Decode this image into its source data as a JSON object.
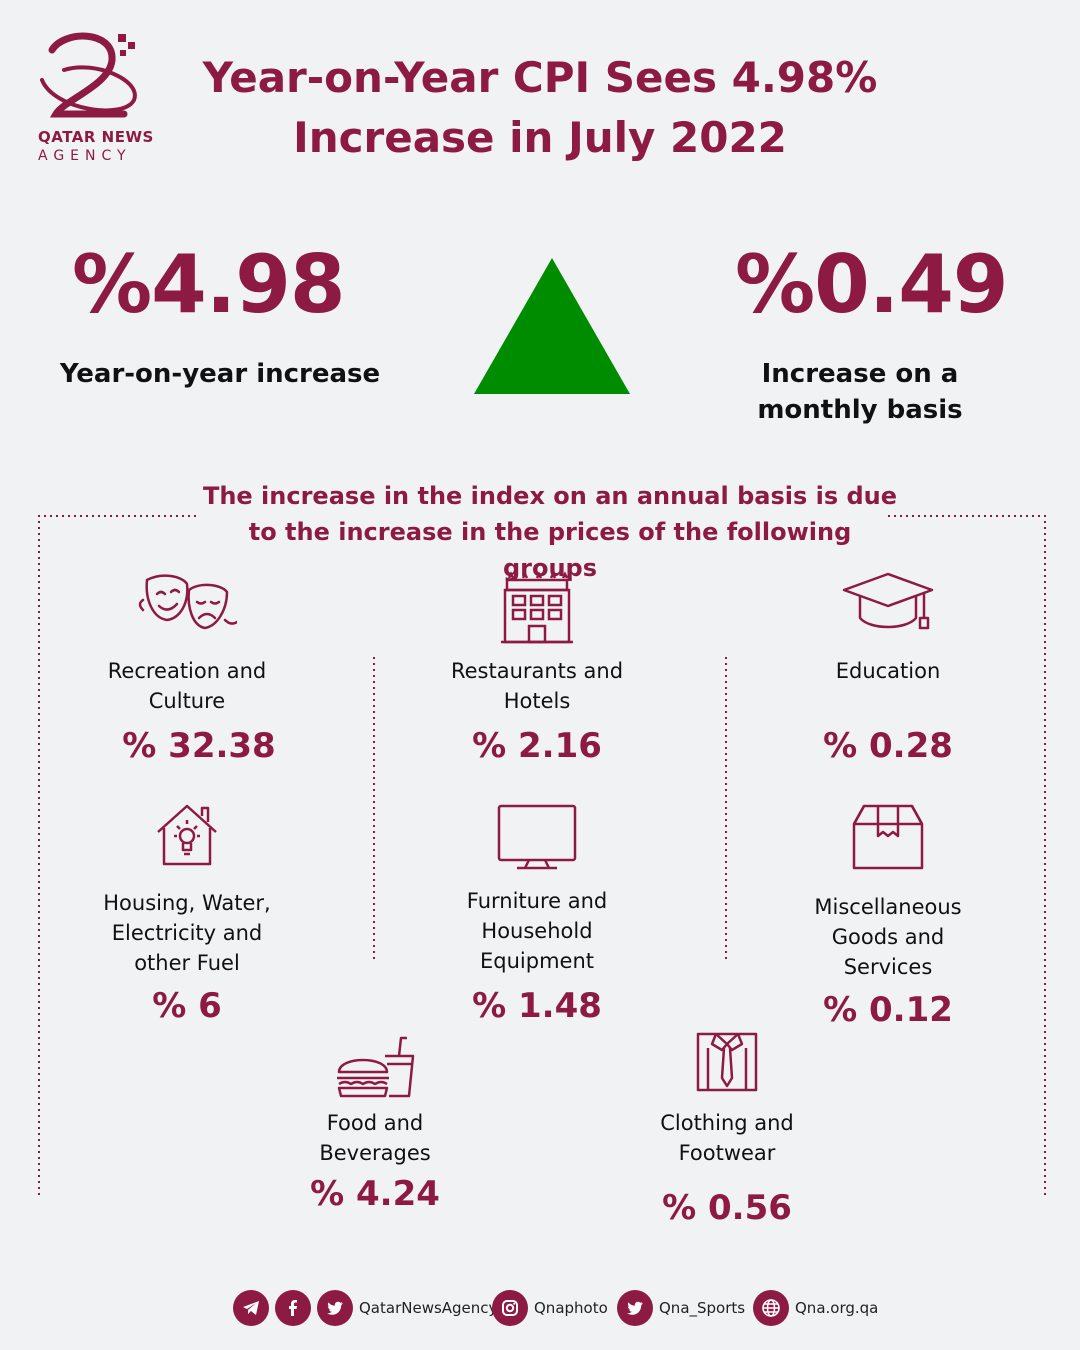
{
  "brand": {
    "logo_name_line1": "QATAR NEWS",
    "logo_name_line2": "AGENCY",
    "color": "#8c1a43"
  },
  "header": {
    "title_line1": "Year-on-Year CPI Sees 4.98%",
    "title_line2": "Increase in July 2022"
  },
  "summary": {
    "yoy_value": "%4.98",
    "yoy_label": "Year-on-year increase",
    "mom_value": "%0.49",
    "mom_label_line1": "Increase on a",
    "mom_label_line2": "monthly basis",
    "trend_icon": "up-triangle-icon",
    "trend_color": "#008c00"
  },
  "section": {
    "title_line1": "The increase in the index on an annual basis is due",
    "title_line2": "to the increase in the prices of the following groups"
  },
  "categories": [
    {
      "icon": "theater-masks-icon",
      "name_lines": [
        "Recreation and",
        "Culture"
      ],
      "percent": "% 32.38"
    },
    {
      "icon": "hotel-icon",
      "name_lines": [
        "Restaurants and",
        "Hotels"
      ],
      "percent": "% 2.16"
    },
    {
      "icon": "graduation-cap-icon",
      "name_lines": [
        "Education"
      ],
      "percent": "% 0.28"
    },
    {
      "icon": "house-bulb-icon",
      "name_lines": [
        "Housing, Water,",
        "Electricity and",
        "other Fuel"
      ],
      "percent": "% 6"
    },
    {
      "icon": "monitor-icon",
      "name_lines": [
        "Furniture and",
        "Household",
        "Equipment"
      ],
      "percent": "% 1.48"
    },
    {
      "icon": "box-icon",
      "name_lines": [
        "Miscellaneous",
        "Goods and",
        "Services"
      ],
      "percent": "% 0.12"
    },
    {
      "icon": "burger-drink-icon",
      "name_lines": [
        "Food and",
        "Beverages"
      ],
      "percent": "% 4.24"
    },
    {
      "icon": "shirt-tie-icon",
      "name_lines": [
        "Clothing and",
        "Footwear"
      ],
      "percent": "% 0.56"
    }
  ],
  "footer": {
    "handle_main": "QatarNewsAgency",
    "handle_photo": "Qnaphoto",
    "handle_sports": "Qna_Sports",
    "website": "Qna.org.qa"
  }
}
